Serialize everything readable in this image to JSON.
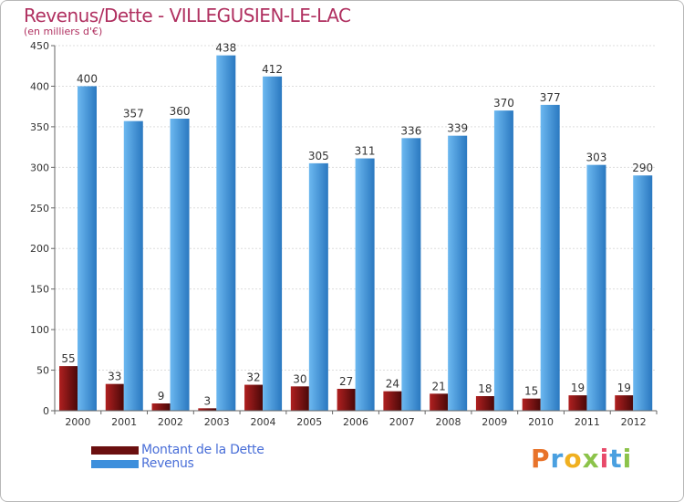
{
  "title": "Revenus/Dette - VILLEGUSIEN-LE-LAC",
  "subtitle": "(en milliers d'€)",
  "brand": {
    "letters": [
      "P",
      "r",
      "o",
      "x",
      "i",
      "t",
      "i"
    ],
    "colors": [
      "#e8732a",
      "#4aa0e0",
      "#f0b020",
      "#8cc34a",
      "#e84a6a",
      "#4aa0e0",
      "#8cc34a"
    ]
  },
  "colors": {
    "dette": "#8b1a1a",
    "dette_dark": "#4a0808",
    "revenus": "#5aa8e8",
    "revenus_dark": "#2a78c0",
    "title": "#b03060",
    "axis_text": "#333333"
  },
  "legend": [
    {
      "label": "Montant de la Dette",
      "color": "#6b0f0f"
    },
    {
      "label": "Revenus",
      "color": "#3d8fdc"
    }
  ],
  "chart_data": {
    "type": "bar",
    "title": "Revenus/Dette - VILLEGUSIEN-LE-LAC",
    "ylabel": "(en milliers d'€)",
    "xlabel": "",
    "ylim": [
      0,
      450
    ],
    "yticks": [
      0,
      50,
      100,
      150,
      200,
      250,
      300,
      350,
      400,
      450
    ],
    "grid": true,
    "legend_position": "bottom-left",
    "categories": [
      "2000",
      "2001",
      "2002",
      "2003",
      "2004",
      "2005",
      "2006",
      "2007",
      "2008",
      "2009",
      "2010",
      "2011",
      "2012"
    ],
    "series": [
      {
        "name": "Montant de la Dette",
        "values": [
          55,
          33,
          9,
          3,
          32,
          30,
          27,
          24,
          21,
          18,
          15,
          19,
          19
        ]
      },
      {
        "name": "Revenus",
        "values": [
          400,
          357,
          360,
          438,
          412,
          305,
          311,
          336,
          339,
          370,
          377,
          303,
          290
        ]
      }
    ]
  }
}
